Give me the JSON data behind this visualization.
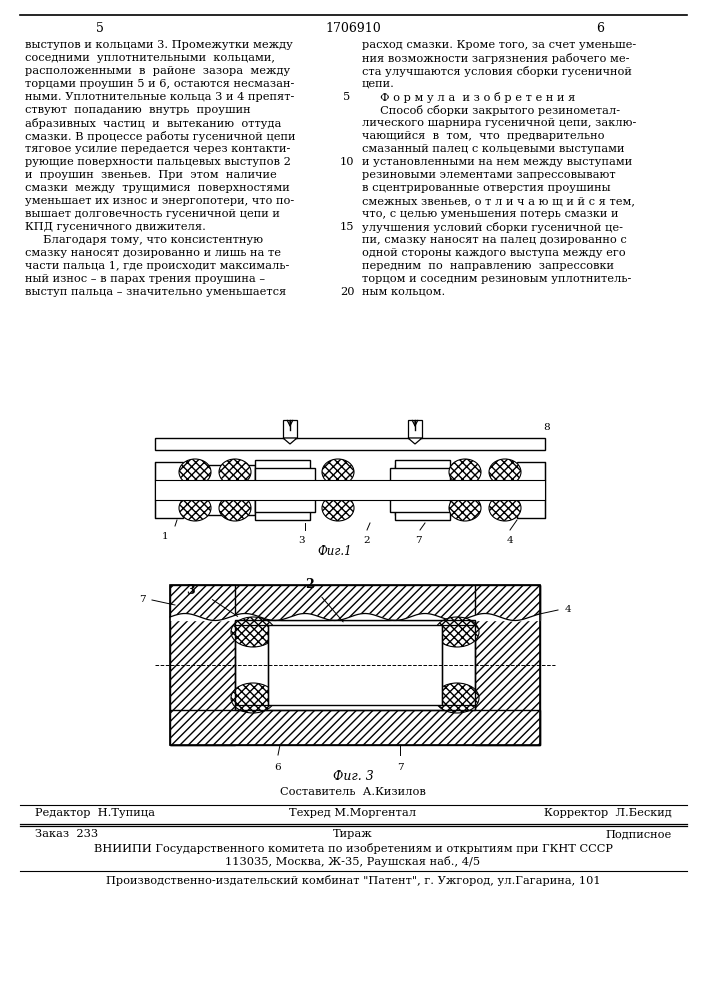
{
  "page_num_left": "5",
  "page_num_center": "1706910",
  "page_num_right": "6",
  "col1_text": [
    "выступов и кольцами 3. Промежутки между",
    "соседними  уплотнительными  кольцами,",
    "расположенными  в  районе  зазора  между",
    "торцами проушин 5 и 6, остаются несмазан-",
    "ными. Уплотнительные кольца 3 и 4 препят-",
    "ствуют  попаданию  внутрь  проушин",
    "абразивных  частиц  и  вытеканию  оттуда",
    "смазки. В процессе работы гусеничной цепи",
    "тяговое усилие передается через контакти-",
    "рующие поверхности пальцевых выступов 2",
    "и  проушин  звеньев.  При  этом  наличие",
    "смазки  между  трущимися  поверхностями",
    "уменьшает их износ и энергопотери, что по-",
    "вышает долговечность гусеничной цепи и",
    "КПД гусеничного движителя.",
    "     Благодаря тому, что консистентную",
    "смазку наносят дозированно и лишь на те",
    "части пальца 1, где происходит максималь-",
    "ный износ – в парах трения проушина –",
    "выступ пальца – значительно уменьшается"
  ],
  "line_num_map": {
    "4": "5",
    "9": "10",
    "14": "15",
    "19": "20"
  },
  "col2_text": [
    "расход смазки. Кроме того, за счет уменьше-",
    "ния возможности загрязнения рабочего ме-",
    "ста улучшаются условия сборки гусеничной",
    "цепи.",
    "     Ф о р м у л а  и з о б р е т е н и я",
    "     Способ сборки закрытого резинометал-",
    "лического шарнира гусеничной цепи, заклю-",
    "чающийся  в  том,  что  предварительно",
    "смазанный палец с кольцевыми выступами",
    "и установленными на нем между выступами",
    "резиновыми элементами запрессовывают",
    "в сцентрированные отверстия проушины",
    "смежных звеньев, о т л и ч а ю щ и й с я тем,",
    "что, с целью уменьшения потерь смазки и",
    "улучшения условий сборки гусеничной це-",
    "пи, смазку наносят на палец дозированно с",
    "одной стороны каждого выступа между его",
    "передним  по  направлению  запрессовки",
    "торцом и соседним резиновым уплотнитель-",
    "ным кольцом."
  ],
  "fig1_caption": "Фиг.1",
  "fig3_caption": "Фиг. 3",
  "sostavitel_line": "Составитель  А.Кизилов",
  "editor_label": "Редактор  Н.Тупица",
  "tehred_label": "Техред М.Моргентал",
  "korrektor_label": "Корректор  Л.Бескид",
  "order_label": "Заказ  233",
  "tirazh_label": "Тираж",
  "podpisnoe_label": "Подписное",
  "institute_line1": "ВНИИПИ Государственного комитета по изобретениям и открытиям при ГКНТ СССР",
  "institute_line2": "113035, Москва, Ж-35, Раушская наб., 4/5",
  "publisher_line": "Производственно-издательский комбинат \"Патент\", г. Ужгород, ул.Гагарина, 101",
  "bg_color": "#ffffff",
  "text_color": "#000000"
}
